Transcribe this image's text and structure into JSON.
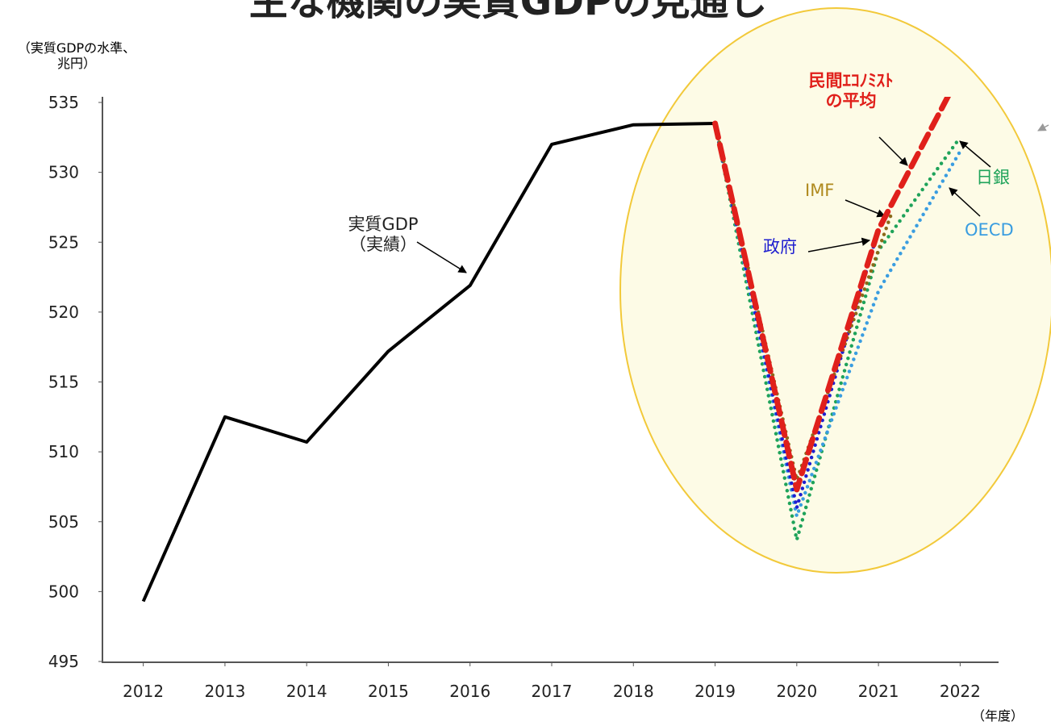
{
  "chart_data": {
    "type": "line",
    "title": "主な機関の実質GDPの見通し",
    "y_label": "（実質GDPの水準、\n兆円）",
    "x_label": "（年度）",
    "xlim": [
      2011.5,
      2022.5
    ],
    "xticks": [
      2012,
      2013,
      2014,
      2015,
      2016,
      2017,
      2018,
      2019,
      2020,
      2021,
      2022
    ],
    "ylim": [
      495,
      535
    ],
    "yticks": [
      495,
      500,
      505,
      510,
      515,
      520,
      525,
      530,
      535
    ],
    "grid": false,
    "series": [
      {
        "name": "実質GDP\n（実績）",
        "color": "#000000",
        "style": "solid",
        "x": [
          2012,
          2013,
          2014,
          2015,
          2016,
          2017,
          2018,
          2019
        ],
        "values": [
          499.3,
          512.5,
          510.7,
          517.2,
          521.9,
          532.0,
          533.4,
          533.5
        ]
      },
      {
        "name": "日銀",
        "color": "#1fa35a",
        "style": "dotted",
        "x": [
          2019,
          2020,
          2021,
          2022
        ],
        "values": [
          533.5,
          503.7,
          524.4,
          532.5
        ]
      },
      {
        "name": "OECD",
        "color": "#3a9de0",
        "style": "dotted",
        "x": [
          2019,
          2020,
          2021,
          2022
        ],
        "values": [
          533.5,
          505.4,
          521.5,
          531.5
        ]
      },
      {
        "name": "政府",
        "color": "#1f1fd0",
        "style": "dotted",
        "x": [
          2019,
          2020,
          2021
        ],
        "values": [
          533.5,
          506.0,
          525.9
        ]
      },
      {
        "name": "IMF",
        "color": "#8b6a1a",
        "style": "dotted",
        "x": [
          2019,
          2020,
          2021.15
        ],
        "values": [
          533.5,
          508.0,
          526.9
        ]
      },
      {
        "name": "民間ｴｺﾉﾐｽﾄ\nの平均",
        "color": "#e0201b",
        "style": "dashed",
        "x": [
          2019,
          2020,
          2021,
          2022
        ],
        "values": [
          533.5,
          507.3,
          525.9,
          537.1
        ]
      }
    ]
  }
}
